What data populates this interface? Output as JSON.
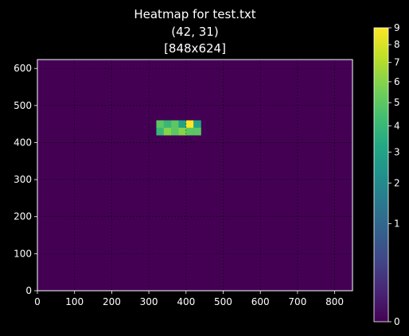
{
  "chart_data": {
    "type": "heatmap",
    "title_lines": [
      "Heatmap for test.txt",
      "(42, 31)",
      "[848x624]"
    ],
    "xlabel": "",
    "ylabel": "",
    "xlim": [
      0,
      848
    ],
    "ylim": [
      0,
      624
    ],
    "x_ticks": [
      0,
      100,
      200,
      300,
      400,
      500,
      600,
      700,
      800
    ],
    "y_ticks": [
      0,
      100,
      200,
      300,
      400,
      500,
      600
    ],
    "grid": true,
    "colormap": "viridis",
    "colorbar": {
      "scale": "sqrt",
      "range": [
        0,
        9
      ],
      "ticks": [
        0,
        1,
        2,
        3,
        4,
        5,
        6,
        7,
        8,
        9
      ]
    },
    "background_value": 0,
    "cell_size": 20,
    "cells": [
      {
        "x": 320,
        "y": 440,
        "value": 5
      },
      {
        "x": 340,
        "y": 440,
        "value": 4
      },
      {
        "x": 360,
        "y": 440,
        "value": 5
      },
      {
        "x": 380,
        "y": 440,
        "value": 3
      },
      {
        "x": 400,
        "y": 440,
        "value": 9
      },
      {
        "x": 420,
        "y": 440,
        "value": 3
      },
      {
        "x": 320,
        "y": 420,
        "value": 4
      },
      {
        "x": 340,
        "y": 420,
        "value": 6
      },
      {
        "x": 360,
        "y": 420,
        "value": 5
      },
      {
        "x": 380,
        "y": 420,
        "value": 6
      },
      {
        "x": 400,
        "y": 420,
        "value": 5
      },
      {
        "x": 420,
        "y": 420,
        "value": 5
      }
    ]
  }
}
